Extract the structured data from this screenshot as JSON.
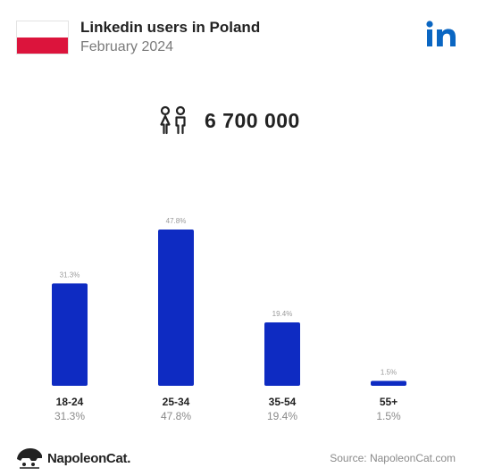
{
  "header": {
    "title": "Linkedin users in Poland",
    "subtitle": "February 2024",
    "flag_colors": [
      "#ffffff",
      "#dc143c"
    ],
    "platform_icon": "linkedin-icon"
  },
  "total": {
    "icon": "people-icon",
    "value": "6 700 000"
  },
  "chart_data": {
    "type": "bar",
    "categories": [
      "18-24",
      "25-34",
      "35-54",
      "55+"
    ],
    "values": [
      31.3,
      47.8,
      19.4,
      1.5
    ],
    "value_labels": [
      "31.3%",
      "47.8%",
      "19.4%",
      "1.5%"
    ],
    "bar_color": "#0e2bc2",
    "title": "",
    "xlabel": "",
    "ylabel": "",
    "ylim": [
      0,
      47.8
    ],
    "grid": false
  },
  "footer": {
    "brand": "NapoleonCat.",
    "source": "Source: NapoleonCat.com"
  }
}
